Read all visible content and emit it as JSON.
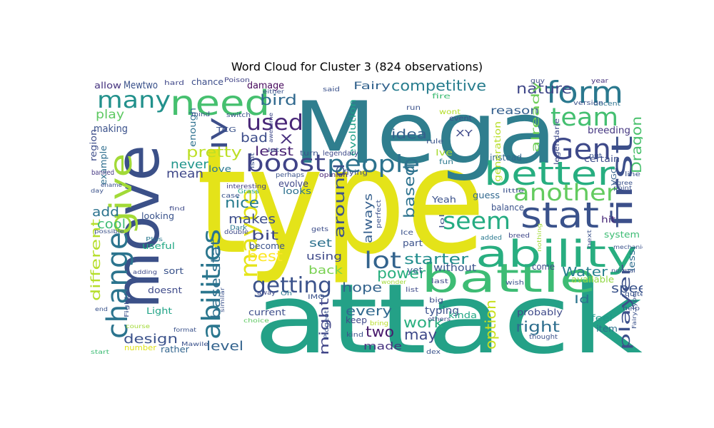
{
  "chart_title": "Word Cloud for Cluster 3 (824 observations)",
  "chart_data": {
    "type": "word_cloud",
    "title": "Word Cloud for Cluster 3 (824 observations)",
    "colormap": "viridis",
    "words": [
      {
        "text": "type",
        "color": "#e4e319"
      },
      {
        "text": "attack",
        "color": "#24a187"
      },
      {
        "text": "Mega",
        "color": "#2f7e8e"
      },
      {
        "text": "move",
        "color": "#3b5088"
      },
      {
        "text": "need",
        "color": "#46c06f"
      },
      {
        "text": "many",
        "color": "#22918c"
      },
      {
        "text": "battle",
        "color": "#3dbc74"
      },
      {
        "text": "ability",
        "color": "#28ae80"
      },
      {
        "text": "stat",
        "color": "#3a528b"
      },
      {
        "text": "better",
        "color": "#27ae80"
      },
      {
        "text": "boost",
        "color": "#404387"
      },
      {
        "text": "people",
        "color": "#2c728e"
      },
      {
        "text": "give",
        "color": "#a2da37"
      },
      {
        "text": "change",
        "color": "#2b748e"
      },
      {
        "text": "form",
        "color": "#2a788e"
      },
      {
        "text": "team",
        "color": "#44bf70"
      },
      {
        "text": "Gen",
        "color": "#3e4989"
      },
      {
        "text": "first",
        "color": "#3c4f8a"
      },
      {
        "text": "another",
        "color": "#63cb5f"
      },
      {
        "text": "seem",
        "color": "#25ac82"
      },
      {
        "text": "abilities",
        "color": "#2a768e"
      },
      {
        "text": "maybe",
        "color": "#e5e419"
      },
      {
        "text": "lot",
        "color": "#33638d"
      },
      {
        "text": "used",
        "color": "#482677"
      },
      {
        "text": "IV",
        "color": "#3d4e8a"
      },
      {
        "text": "getting",
        "color": "#3b528b"
      },
      {
        "text": "competitive",
        "color": "#287d8e"
      },
      {
        "text": "pretty",
        "color": "#bddf26"
      },
      {
        "text": "starter",
        "color": "#228d8d"
      },
      {
        "text": "power",
        "color": "#29af7f"
      },
      {
        "text": "base stat",
        "color": "#2e6f8e"
      },
      {
        "text": "Water",
        "color": "#26818e"
      },
      {
        "text": "speed",
        "color": "#3a538b"
      },
      {
        "text": "player",
        "color": "#3c508b"
      },
      {
        "text": "nature",
        "color": "#3f4788"
      },
      {
        "text": "Dragon",
        "color": "#4ac16d"
      },
      {
        "text": "bird",
        "color": "#30698e"
      },
      {
        "text": "X",
        "color": "#472f7d"
      },
      {
        "text": "bad",
        "color": "#3d4d8a"
      },
      {
        "text": "least",
        "color": "#482173"
      },
      {
        "text": "idea",
        "color": "#34618d"
      },
      {
        "text": "around",
        "color": "#3b528b"
      },
      {
        "text": "based",
        "color": "#2c728e"
      },
      {
        "text": "always",
        "color": "#355f8d"
      },
      {
        "text": "nice",
        "color": "#287c8e"
      },
      {
        "text": "makes",
        "color": "#3d4e8a"
      },
      {
        "text": "bit",
        "color": "#3f4889"
      },
      {
        "text": "best",
        "color": "#fde725"
      },
      {
        "text": "hope",
        "color": "#33638d"
      },
      {
        "text": "every",
        "color": "#31688e"
      },
      {
        "text": "might",
        "color": "#404588"
      },
      {
        "text": "two",
        "color": "#481a6c"
      },
      {
        "text": "work",
        "color": "#29af7f"
      },
      {
        "text": "may",
        "color": "#3e4989"
      },
      {
        "text": "right",
        "color": "#2e6e8e"
      },
      {
        "text": "design",
        "color": "#3b528b"
      },
      {
        "text": "level",
        "color": "#33638d"
      },
      {
        "text": "made",
        "color": "#46337f"
      },
      {
        "text": "option",
        "color": "#c8e020"
      },
      {
        "text": "different",
        "color": "#b5de2b"
      },
      {
        "text": "cool",
        "color": "#3dbc74"
      },
      {
        "text": "add",
        "color": "#2c738e"
      },
      {
        "text": "play",
        "color": "#5ec962"
      },
      {
        "text": "making",
        "color": "#3b528b"
      },
      {
        "text": "mean",
        "color": "#3f4889"
      },
      {
        "text": "never",
        "color": "#1f958b"
      },
      {
        "text": "reason",
        "color": "#355f8d"
      },
      {
        "text": "already",
        "color": "#6ece58"
      },
      {
        "text": "legendarie",
        "color": "#3e4a89"
      },
      {
        "text": "Fairy",
        "color": "#33638d"
      },
      {
        "text": "Mewtwo",
        "color": "#3b528b"
      },
      {
        "text": "allow",
        "color": "#46337f"
      },
      {
        "text": "chance",
        "color": "#3d4e8a"
      },
      {
        "text": "damage",
        "color": "#46085c"
      },
      {
        "text": "breeding",
        "color": "#453781"
      },
      {
        "text": "certain",
        "color": "#3d4d8a"
      },
      {
        "text": "instead",
        "color": "#31678e"
      },
      {
        "text": "generation",
        "color": "#b8de29"
      },
      {
        "text": "evolution",
        "color": "#1fa088"
      },
      {
        "text": "enough",
        "color": "#2d708e"
      },
      {
        "text": "region",
        "color": "#3d4d8a"
      },
      {
        "text": "example",
        "color": "#2e6e8e"
      },
      {
        "text": "banned",
        "color": "#453882"
      },
      {
        "text": "love",
        "color": "#2a788e"
      },
      {
        "text": "evolve",
        "color": "#3f4788"
      },
      {
        "text": "looks",
        "color": "#2d718e"
      },
      {
        "text": "guess",
        "color": "#31688e"
      },
      {
        "text": "balance",
        "color": "#3b528b"
      },
      {
        "text": "looking",
        "color": "#3a538b"
      },
      {
        "text": "useful",
        "color": "#22a884"
      },
      {
        "text": "sort",
        "color": "#3a538b"
      },
      {
        "text": "become",
        "color": "#3b528b"
      },
      {
        "text": "using",
        "color": "#3e4989"
      },
      {
        "text": "set",
        "color": "#2d718e"
      },
      {
        "text": "back",
        "color": "#79d151"
      },
      {
        "text": "without",
        "color": "#3a548c"
      },
      {
        "text": "yet",
        "color": "#34618d"
      },
      {
        "text": "come",
        "color": "#3e4a89"
      },
      {
        "text": "available",
        "color": "#90d743"
      },
      {
        "text": "less",
        "color": "#2e6d8e"
      },
      {
        "text": "hit",
        "color": "#482878"
      },
      {
        "text": "system",
        "color": "#3dbc74"
      },
      {
        "text": "Id",
        "color": "#2b748e"
      },
      {
        "text": "feel",
        "color": "#1f9a8a"
      },
      {
        "text": "item",
        "color": "#2c728e"
      },
      {
        "text": "probably",
        "color": "#3e4a89"
      },
      {
        "text": "typing",
        "color": "#3b518b"
      },
      {
        "text": "kinda",
        "color": "#22a785"
      },
      {
        "text": "current",
        "color": "#3d4e8a"
      },
      {
        "text": "doesnt",
        "color": "#3e4a89"
      },
      {
        "text": "Light",
        "color": "#20a386"
      },
      {
        "text": "number",
        "color": "#dfe318"
      },
      {
        "text": "rather",
        "color": "#32658e"
      },
      {
        "text": "TCG",
        "color": "#3a538b"
      },
      {
        "text": "Poison",
        "color": "#414487"
      },
      {
        "text": "hard",
        "color": "#3f4788"
      },
      {
        "text": "guy",
        "color": "#3e4a89"
      },
      {
        "text": "year",
        "color": "#46327e"
      },
      {
        "text": "decent",
        "color": "#2c738e"
      },
      {
        "text": "version",
        "color": "#3b528b"
      },
      {
        "text": "VGC",
        "color": "#34608d"
      },
      {
        "text": "Ive",
        "color": "#a8db34"
      },
      {
        "text": "fun",
        "color": "#2a788e"
      },
      {
        "text": "XY",
        "color": "#3e4989"
      },
      {
        "text": "Yeah",
        "color": "#3b528b"
      },
      {
        "text": "fire",
        "color": "#3dbc74"
      },
      {
        "text": "wont",
        "color": "#b5de2b"
      },
      {
        "text": "event",
        "color": "#3c4f8a"
      },
      {
        "text": "run",
        "color": "#3b528b"
      },
      {
        "text": "rule",
        "color": "#3a538b"
      },
      {
        "text": "said",
        "color": "#3b528b"
      },
      {
        "text": "turn",
        "color": "#3a548c"
      },
      {
        "text": "legendary",
        "color": "#3e4a89"
      },
      {
        "text": "flying",
        "color": "#3d4e8a"
      },
      {
        "text": "opinion",
        "color": "#482475"
      },
      {
        "text": "perhaps",
        "color": "#3b528b"
      },
      {
        "text": "interesting",
        "color": "#433e85"
      },
      {
        "text": "Grass",
        "color": "#20a386"
      },
      {
        "text": "case",
        "color": "#3a548c"
      },
      {
        "text": "Dark",
        "color": "#2a788e"
      },
      {
        "text": "double",
        "color": "#3e4a89"
      },
      {
        "text": "gets",
        "color": "#3d4e8a"
      },
      {
        "text": "part",
        "color": "#3b528b"
      },
      {
        "text": "Ice",
        "color": "#3b528b"
      },
      {
        "text": "perfect",
        "color": "#3b528b"
      },
      {
        "text": "lol",
        "color": "#3c4f8a"
      },
      {
        "text": "last",
        "color": "#3f4788"
      },
      {
        "text": "list",
        "color": "#3e4a89"
      },
      {
        "text": "big",
        "color": "#3d4e8a"
      },
      {
        "text": "wonder",
        "color": "#a2da37"
      },
      {
        "text": "IMO",
        "color": "#3b528b"
      },
      {
        "text": "Oh",
        "color": "#2a788e"
      },
      {
        "text": "away",
        "color": "#3e4989"
      },
      {
        "text": "similar",
        "color": "#3b528b"
      },
      {
        "text": "choice",
        "color": "#5ec962"
      },
      {
        "text": "keep",
        "color": "#3f4889"
      },
      {
        "text": "bring",
        "color": "#b8de29"
      },
      {
        "text": "kind",
        "color": "#3b528b"
      },
      {
        "text": "Pidgeot",
        "color": "#3b528b"
      },
      {
        "text": "dex",
        "color": "#3a538b"
      },
      {
        "text": "others",
        "color": "#3e4989"
      },
      {
        "text": "Mawile",
        "color": "#3b528b"
      },
      {
        "text": "format",
        "color": "#3b528b"
      },
      {
        "text": "course",
        "color": "#a2da37"
      },
      {
        "text": "start",
        "color": "#3dbc74"
      },
      {
        "text": "end",
        "color": "#3a538b"
      },
      {
        "text": "Fighting",
        "color": "#3b528b"
      },
      {
        "text": "adding",
        "color": "#3e4989"
      },
      {
        "text": "Plus",
        "color": "#2a788e"
      },
      {
        "text": "possible",
        "color": "#3b528b"
      },
      {
        "text": "find",
        "color": "#3e4a89"
      },
      {
        "text": "day",
        "color": "#3b528b"
      },
      {
        "text": "ename",
        "color": "#3b528b"
      },
      {
        "text": "isnt",
        "color": "#3b528b"
      },
      {
        "text": "let",
        "color": "#3b528b"
      },
      {
        "text": "awesome",
        "color": "#3e4989"
      },
      {
        "text": "either",
        "color": "#3b528b"
      },
      {
        "text": "switch",
        "color": "#3b528b"
      },
      {
        "text": "mind",
        "color": "#3b528b"
      },
      {
        "text": "Fairy type",
        "color": "#3b528b"
      },
      {
        "text": "quite",
        "color": "#3a538b"
      },
      {
        "text": "help",
        "color": "#3b528b"
      },
      {
        "text": "wish",
        "color": "#3a538b"
      },
      {
        "text": "thought",
        "color": "#3b528b"
      },
      {
        "text": "added",
        "color": "#2a788e"
      },
      {
        "text": "breed",
        "color": "#3f4788"
      },
      {
        "text": "next",
        "color": "#3b528b"
      },
      {
        "text": "nothing",
        "color": "#a2da37"
      },
      {
        "text": "mechanic",
        "color": "#3b528b"
      },
      {
        "text": "little",
        "color": "#3b528b"
      },
      {
        "text": "agree",
        "color": "#3b528b"
      },
      {
        "text": "point",
        "color": "#3b528b"
      },
      {
        "text": "line",
        "color": "#3b528b"
      },
      {
        "text": "put",
        "color": "#3b528b"
      },
      {
        "text": "normal",
        "color": "#3b528b"
      }
    ]
  }
}
